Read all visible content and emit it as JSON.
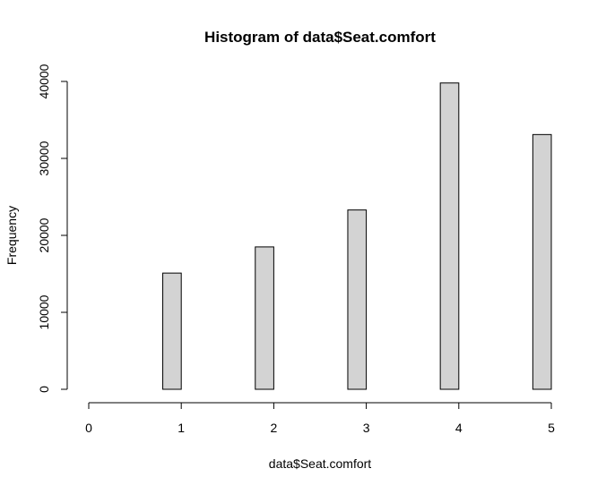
{
  "chart_data": {
    "type": "bar",
    "title": "Histogram of data$Seat.comfort",
    "xlabel": "data$Seat.comfort",
    "ylabel": "Frequency",
    "x_ticks": [
      "0",
      "1",
      "2",
      "3",
      "4",
      "5"
    ],
    "y_ticks": [
      "0",
      "10000",
      "20000",
      "30000",
      "40000"
    ],
    "xlim": [
      0,
      5
    ],
    "ylim": [
      0,
      40000
    ],
    "bins": [
      {
        "from": 0.0,
        "to": 0.2,
        "count": 0
      },
      {
        "from": 0.2,
        "to": 0.4,
        "count": 0
      },
      {
        "from": 0.4,
        "to": 0.6,
        "count": 0
      },
      {
        "from": 0.6,
        "to": 0.8,
        "count": 0
      },
      {
        "from": 0.8,
        "to": 1.0,
        "count": 15100
      },
      {
        "from": 1.0,
        "to": 1.2,
        "count": 0
      },
      {
        "from": 1.2,
        "to": 1.4,
        "count": 0
      },
      {
        "from": 1.4,
        "to": 1.6,
        "count": 0
      },
      {
        "from": 1.6,
        "to": 1.8,
        "count": 0
      },
      {
        "from": 1.8,
        "to": 2.0,
        "count": 18500
      },
      {
        "from": 2.0,
        "to": 2.2,
        "count": 0
      },
      {
        "from": 2.2,
        "to": 2.4,
        "count": 0
      },
      {
        "from": 2.4,
        "to": 2.6,
        "count": 0
      },
      {
        "from": 2.6,
        "to": 2.8,
        "count": 0
      },
      {
        "from": 2.8,
        "to": 3.0,
        "count": 23300
      },
      {
        "from": 3.0,
        "to": 3.2,
        "count": 0
      },
      {
        "from": 3.2,
        "to": 3.4,
        "count": 0
      },
      {
        "from": 3.4,
        "to": 3.6,
        "count": 0
      },
      {
        "from": 3.6,
        "to": 3.8,
        "count": 0
      },
      {
        "from": 3.8,
        "to": 4.0,
        "count": 39800
      },
      {
        "from": 4.0,
        "to": 4.2,
        "count": 0
      },
      {
        "from": 4.2,
        "to": 4.4,
        "count": 0
      },
      {
        "from": 4.4,
        "to": 4.6,
        "count": 0
      },
      {
        "from": 4.6,
        "to": 4.8,
        "count": 0
      },
      {
        "from": 4.8,
        "to": 5.0,
        "count": 33100
      }
    ],
    "bar_fill": "#d3d3d3",
    "bar_stroke": "#000000",
    "grid": false,
    "legend": "none"
  }
}
